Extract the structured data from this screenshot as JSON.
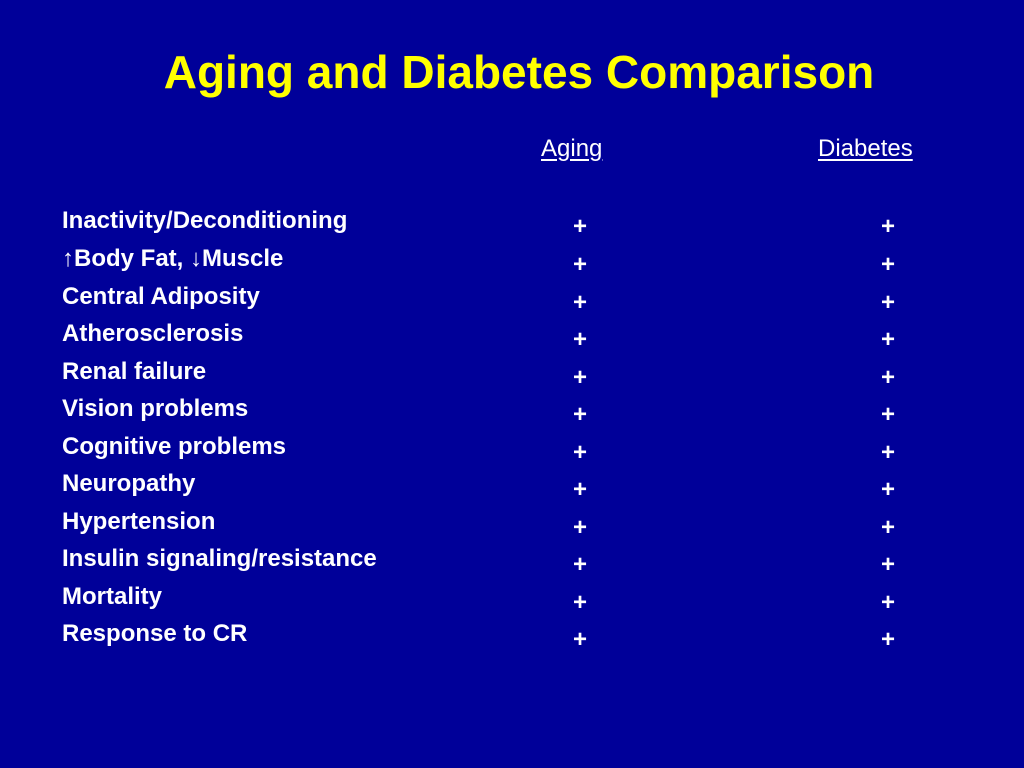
{
  "slide": {
    "title": "Aging and Diabetes Comparison",
    "colors": {
      "background": "#000099",
      "title": "#FFFF00",
      "text": "#FFFFFF"
    }
  },
  "table": {
    "headers": {
      "aging": "Aging",
      "diabetes": "Diabetes"
    },
    "rows": [
      {
        "label": "Inactivity/Deconditioning",
        "aging": "+",
        "diabetes": "+"
      },
      {
        "label_parts": [
          "↑",
          "Body Fat, ",
          "↓",
          "Muscle"
        ],
        "aging": "+",
        "diabetes": "+"
      },
      {
        "label": "Central Adiposity",
        "aging": "+",
        "diabetes": "+"
      },
      {
        "label": "Atherosclerosis",
        "aging": "+",
        "diabetes": "+"
      },
      {
        "label": "Renal failure",
        "aging": "+",
        "diabetes": "+"
      },
      {
        "label": "Vision problems",
        "aging": "+",
        "diabetes": "+"
      },
      {
        "label": "Cognitive problems",
        "aging": "+",
        "diabetes": "+"
      },
      {
        "label": "Neuropathy",
        "aging": "+",
        "diabetes": "+"
      },
      {
        "label": "Hypertension",
        "aging": "+",
        "diabetes": "+"
      },
      {
        "label": "Insulin signaling/resistance",
        "aging": "+",
        "diabetes": "+"
      },
      {
        "label": "Mortality",
        "aging": "+",
        "diabetes": "+"
      },
      {
        "label": "Response to CR",
        "aging": "+",
        "diabetes": "+"
      }
    ]
  }
}
